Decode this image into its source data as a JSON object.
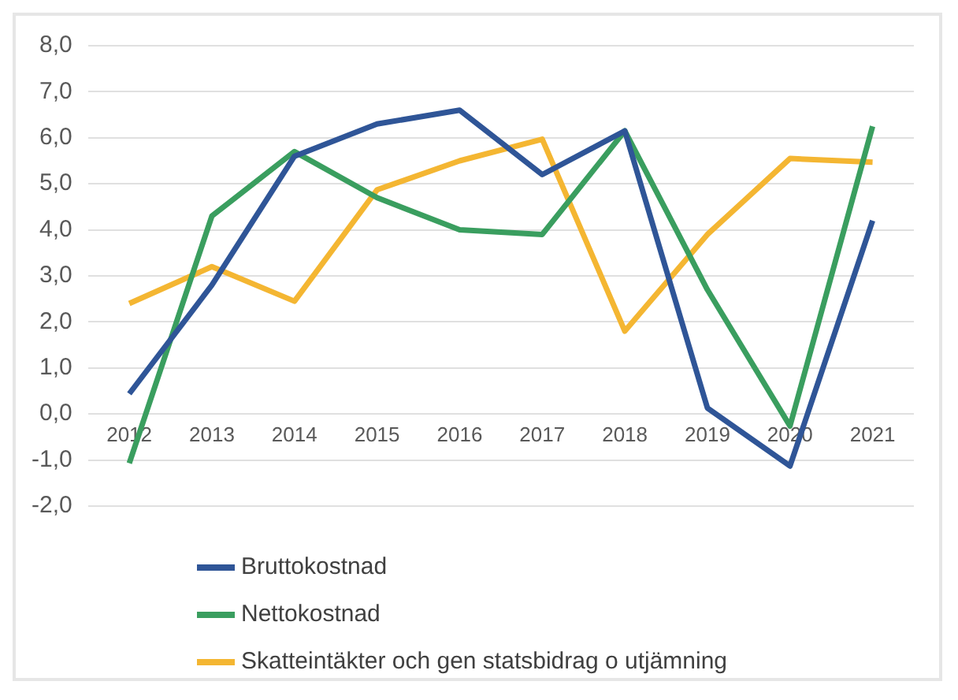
{
  "chart_data": {
    "type": "line",
    "categories": [
      "2012",
      "2013",
      "2014",
      "2015",
      "2016",
      "2017",
      "2018",
      "2019",
      "2020",
      "2021"
    ],
    "series": [
      {
        "name": "Bruttokostnad",
        "color": "#2f5597",
        "values": [
          0.44,
          2.8,
          5.6,
          6.3,
          6.6,
          5.2,
          6.15,
          0.13,
          -1.13,
          4.2
        ]
      },
      {
        "name": "Nettokostnad",
        "color": "#3a9e5f",
        "values": [
          -1.07,
          4.3,
          5.7,
          4.7,
          4.0,
          3.9,
          6.15,
          2.7,
          -0.26,
          6.25
        ]
      },
      {
        "name": "Skatteintäkter och gen statsbidrag o utjämning",
        "color": "#f4b632",
        "values": [
          2.4,
          3.2,
          2.45,
          4.87,
          5.5,
          5.97,
          1.8,
          3.9,
          5.55,
          5.47
        ]
      }
    ],
    "ylim": [
      -2,
      8
    ],
    "yticks": [
      {
        "value": -2,
        "label": "-2,0"
      },
      {
        "value": -1,
        "label": "-1,0"
      },
      {
        "value": 0,
        "label": "0,0"
      },
      {
        "value": 1,
        "label": "1,0"
      },
      {
        "value": 2,
        "label": "2,0"
      },
      {
        "value": 3,
        "label": "3,0"
      },
      {
        "value": 4,
        "label": "4,0"
      },
      {
        "value": 5,
        "label": "5,0"
      },
      {
        "value": 6,
        "label": "6,0"
      },
      {
        "value": 7,
        "label": "7,0"
      },
      {
        "value": 8,
        "label": "8,0"
      }
    ],
    "grid": "y",
    "legend": "bottom",
    "marker": "none",
    "line_style": "solid"
  }
}
